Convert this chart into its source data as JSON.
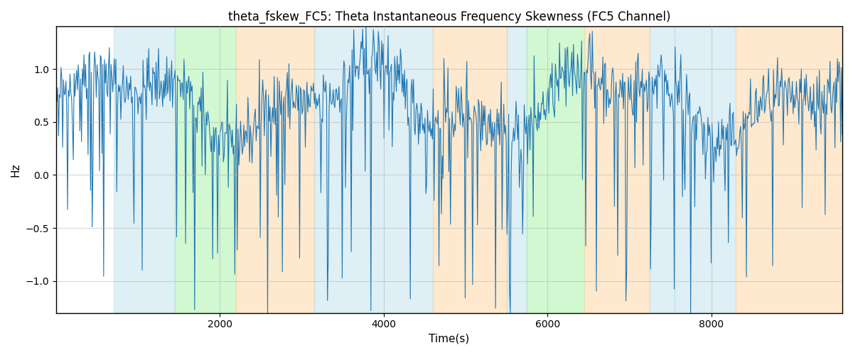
{
  "title": "theta_fskew_FC5: Theta Instantaneous Frequency Skewness (FC5 Channel)",
  "xlabel": "Time(s)",
  "ylabel": "Hz",
  "xlim": [
    0,
    9600
  ],
  "ylim": [
    -1.3,
    1.4
  ],
  "yticks": [
    -1.0,
    -0.5,
    0.0,
    0.5,
    1.0
  ],
  "xticks": [
    2000,
    4000,
    6000,
    8000
  ],
  "line_color": "#1f77b4",
  "line_width": 0.8,
  "background_color": "#ffffff",
  "grid_color": "#b0b0b0",
  "grid_alpha": 0.5,
  "grid_linewidth": 0.8,
  "bands": [
    {
      "xmin": 700,
      "xmax": 1450,
      "color": "#add8e6",
      "alpha": 0.4
    },
    {
      "xmin": 1450,
      "xmax": 2200,
      "color": "#90ee90",
      "alpha": 0.4
    },
    {
      "xmin": 2200,
      "xmax": 3150,
      "color": "#ffd59e",
      "alpha": 0.5
    },
    {
      "xmin": 3150,
      "xmax": 4600,
      "color": "#add8e6",
      "alpha": 0.4
    },
    {
      "xmin": 4600,
      "xmax": 5500,
      "color": "#ffd59e",
      "alpha": 0.5
    },
    {
      "xmin": 5500,
      "xmax": 5750,
      "color": "#add8e6",
      "alpha": 0.4
    },
    {
      "xmin": 5750,
      "xmax": 6450,
      "color": "#90ee90",
      "alpha": 0.4
    },
    {
      "xmin": 6450,
      "xmax": 7250,
      "color": "#ffd59e",
      "alpha": 0.5
    },
    {
      "xmin": 7250,
      "xmax": 7550,
      "color": "#add8e6",
      "alpha": 0.4
    },
    {
      "xmin": 7550,
      "xmax": 8300,
      "color": "#add8e6",
      "alpha": 0.4
    },
    {
      "xmin": 8300,
      "xmax": 9600,
      "color": "#ffd59e",
      "alpha": 0.5
    }
  ],
  "n_samples": 960,
  "seed": 42
}
